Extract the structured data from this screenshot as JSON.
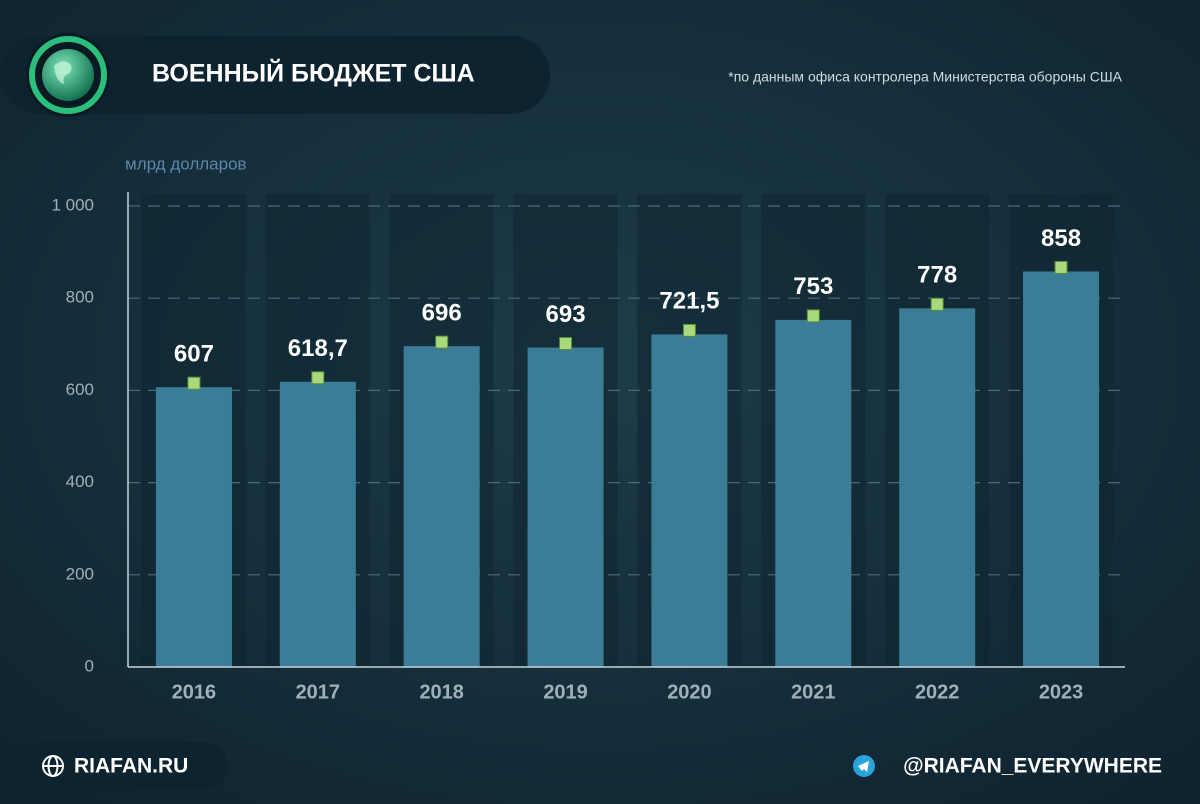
{
  "chart_data": {
    "type": "bar",
    "title": "ВОЕННЫЙ БЮДЖЕТ США",
    "subtitle": "*по данным офиса контролера Министерства обороны США",
    "y_label": "млрд долларов",
    "categories": [
      "2016",
      "2017",
      "2018",
      "2019",
      "2020",
      "2021",
      "2022",
      "2023"
    ],
    "values": [
      607,
      618.7,
      696,
      693,
      721.5,
      753,
      778,
      858
    ],
    "value_labels": [
      "607",
      "618,7",
      "696",
      "693",
      "721,5",
      "753",
      "778",
      "858"
    ],
    "color": "#3b7d96",
    "marker_color": "#a9d97a",
    "ylim": [
      0,
      1000
    ],
    "yticks": [
      0,
      200,
      400,
      600,
      800,
      {
        "value": 1000,
        "label": "1 000"
      }
    ],
    "grid": true
  },
  "footer": {
    "site": "RIAFAN.RU",
    "telegram": "@RIAFAN_EVERYWHERE"
  }
}
